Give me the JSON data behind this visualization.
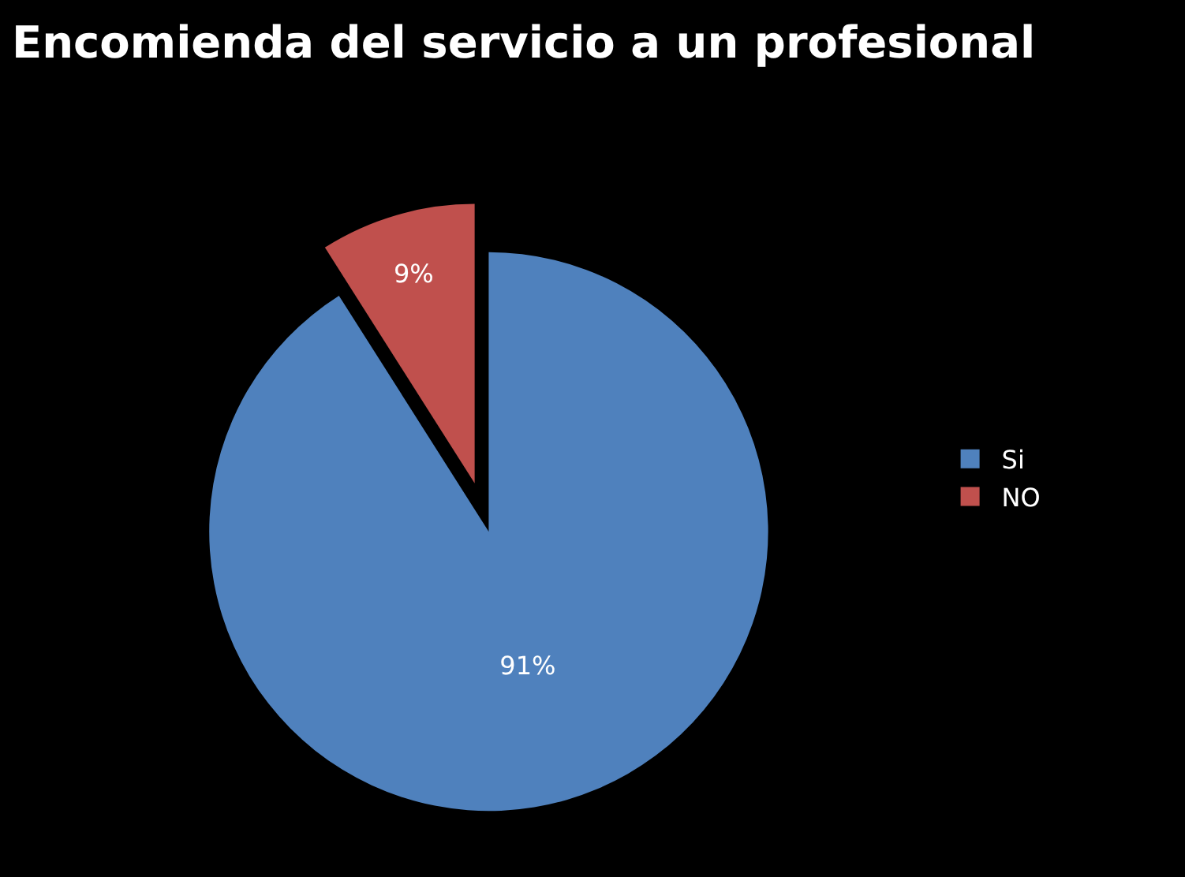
{
  "chart_data": {
    "type": "pie",
    "title": "Encomienda del servicio a un profesional",
    "categories": [
      "Si",
      "NO"
    ],
    "values": [
      91,
      9
    ],
    "colors": [
      "#4f81bd",
      "#c0504d"
    ],
    "value_labels": [
      "91%",
      "9%"
    ],
    "legend": "right"
  }
}
